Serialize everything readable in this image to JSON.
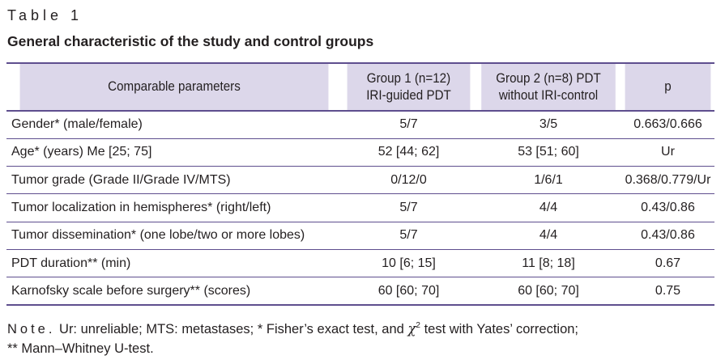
{
  "table_label": "Table 1",
  "caption": "General characteristic of the study and control groups",
  "headers": {
    "param": "Comparable parameters",
    "group1_line1": "Group 1 (n=12)",
    "group1_line2": "IRI-guided PDT",
    "group2_line1": "Group 2 (n=8) PDT",
    "group2_line2": "without IRI-control",
    "p": "p"
  },
  "rows": [
    {
      "param": "Gender* (male/female)",
      "g1": "5/7",
      "g2": "3/5",
      "p": "0.663/0.666"
    },
    {
      "param": "Age* (years) Me [25; 75]",
      "g1": "52 [44; 62]",
      "g2": "53 [51; 60]",
      "p": "Ur"
    },
    {
      "param": "Tumor grade (Grade II/Grade IV/MTS)",
      "g1": "0/12/0",
      "g2": "1/6/1",
      "p": "0.368/0.779/Ur"
    },
    {
      "param": "Tumor localization in hemispheres* (right/left)",
      "g1": "5/7",
      "g2": "4/4",
      "p": "0.43/0.86"
    },
    {
      "param": "Tumor dissemination* (one lobe/two or more lobes)",
      "g1": "5/7",
      "g2": "4/4",
      "p": "0.43/0.86"
    },
    {
      "param": "PDT duration** (min)",
      "g1": "10 [6; 15]",
      "g2": "11 [8; 18]",
      "p": "0.67"
    },
    {
      "param": "Karnofsky scale before surgery** (scores)",
      "g1": "60 [60; 70]",
      "g2": "60 [60; 70]",
      "p": "0.75"
    }
  ],
  "note": {
    "label": "Note.",
    "text_before_chi": " Ur: unreliable; MTS: metastases; * Fisher’s exact test, and ",
    "chi": "χ",
    "chi_sup": "2",
    "text_after_chi": " test with Yates’ correction;",
    "line2": "** Mann–Whitney U-test."
  },
  "colors": {
    "header_bg": "#dcd7ea",
    "rule": "#5e4e8e",
    "text": "#231f20"
  }
}
